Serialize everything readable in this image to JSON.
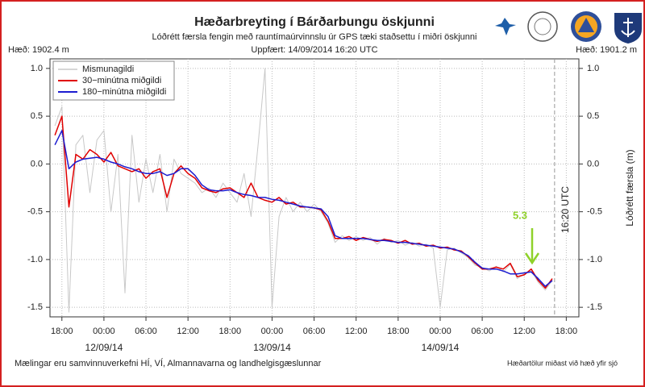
{
  "chart_data": {
    "type": "line",
    "title": "Hæðarbreyting í Bárðarbungu öskjunni",
    "subtitle": "Lóðrétt færsla fengin með rauntímaúrvinnslu úr GPS tæki staðsettu í miðri öskjunni",
    "updated": "Uppfært: 14/09/2014 16:20 UTC",
    "left_height": "Hæð: 1902.4 m",
    "right_height": "Hæð: 1901.2 m",
    "y2label": "Lóðrétt færsla (m)",
    "footer_left": "Mælingar eru samvinnuverkefni HÍ, VÍ, Almannavarna og landhelgisgæslunnar",
    "footer_right": "Hæðartölur miðast við hæð yfir sjó",
    "annotation": {
      "text": "5.3",
      "color": "#8fd12a"
    },
    "vline": {
      "x": 64.33,
      "label": "16:20 UTC"
    },
    "grid": true,
    "legend": "upper left",
    "xlim": [
      -7.7,
      67.8
    ],
    "ylim": [
      -1.6,
      1.1
    ],
    "xticks": [
      {
        "value": -6,
        "label": "18:00"
      },
      {
        "value": 0,
        "label": "00:00"
      },
      {
        "value": 6,
        "label": "06:00"
      },
      {
        "value": 12,
        "label": "12:00"
      },
      {
        "value": 18,
        "label": "18:00"
      },
      {
        "value": 24,
        "label": "00:00"
      },
      {
        "value": 30,
        "label": "06:00"
      },
      {
        "value": 36,
        "label": "12:00"
      },
      {
        "value": 42,
        "label": "18:00"
      },
      {
        "value": 48,
        "label": "00:00"
      },
      {
        "value": 54,
        "label": "06:00"
      },
      {
        "value": 60,
        "label": "12:00"
      },
      {
        "value": 66,
        "label": "18:00"
      }
    ],
    "date_ticks": [
      {
        "value": 0,
        "label": "12/09/14"
      },
      {
        "value": 24,
        "label": "13/09/14"
      },
      {
        "value": 48,
        "label": "14/09/14"
      }
    ],
    "yticks": [
      {
        "value": 1,
        "label": "1.0"
      },
      0.5,
      {
        "value": 0,
        "label": "0.0"
      },
      -0.5,
      {
        "value": -1,
        "label": "-1.0"
      },
      -1.5
    ],
    "x": [
      -7,
      -6,
      -5,
      -4,
      -3,
      -2,
      -1,
      0,
      1,
      2,
      3,
      4,
      5,
      6,
      7,
      8,
      9,
      10,
      11,
      12,
      13,
      14,
      15,
      16,
      17,
      18,
      19,
      20,
      21,
      22,
      23,
      24,
      25,
      26,
      27,
      28,
      29,
      30,
      31,
      32,
      33,
      34,
      35,
      36,
      37,
      38,
      39,
      40,
      41,
      42,
      43,
      44,
      45,
      46,
      47,
      48,
      49,
      50,
      51,
      52,
      53,
      54,
      55,
      56,
      57,
      58,
      59,
      60,
      61,
      62,
      63,
      64
    ],
    "series": [
      {
        "name": "Mismunagildi",
        "color": "#c8c8c8",
        "width": 1,
        "values": [
          0.4,
          0.6,
          -1.55,
          0.2,
          0.3,
          -0.3,
          0.25,
          0.35,
          -0.5,
          0.1,
          -1.35,
          0.3,
          -0.4,
          0.05,
          -0.3,
          0.1,
          -0.5,
          0.05,
          -0.1,
          -0.15,
          -0.2,
          -0.3,
          -0.25,
          -0.35,
          -0.2,
          -0.3,
          -0.4,
          -0.1,
          -0.55,
          0.2,
          1.0,
          -1.5,
          -0.55,
          -0.35,
          -0.5,
          -0.4,
          -0.5,
          -0.42,
          -0.5,
          -0.62,
          -0.82,
          -0.75,
          -0.8,
          -0.76,
          -0.8,
          -0.77,
          -0.84,
          -0.78,
          -0.82,
          -0.8,
          -0.85,
          -0.82,
          -0.86,
          -0.84,
          -0.88,
          -1.5,
          -0.9,
          -0.88,
          -0.93,
          -0.98,
          -1.06,
          -1.08,
          -1.12,
          -1.07,
          -1.13,
          -1.05,
          -1.2,
          -1.15,
          -1.12,
          -1.24,
          -1.32,
          -1.22
        ]
      },
      {
        "name": "30−minútna miðgildi",
        "color": "#e00000",
        "width": 1.5,
        "values": [
          0.3,
          0.5,
          -0.45,
          0.1,
          0.05,
          0.15,
          0.1,
          0.02,
          0.12,
          -0.02,
          -0.05,
          -0.08,
          -0.05,
          -0.15,
          -0.08,
          -0.05,
          -0.35,
          -0.1,
          -0.02,
          -0.1,
          -0.15,
          -0.25,
          -0.28,
          -0.3,
          -0.26,
          -0.25,
          -0.3,
          -0.35,
          -0.2,
          -0.35,
          -0.38,
          -0.4,
          -0.35,
          -0.42,
          -0.4,
          -0.45,
          -0.45,
          -0.46,
          -0.48,
          -0.6,
          -0.78,
          -0.78,
          -0.76,
          -0.8,
          -0.77,
          -0.79,
          -0.81,
          -0.79,
          -0.8,
          -0.83,
          -0.8,
          -0.84,
          -0.83,
          -0.86,
          -0.85,
          -0.88,
          -0.87,
          -0.9,
          -0.91,
          -0.97,
          -1.04,
          -1.1,
          -1.1,
          -1.08,
          -1.1,
          -1.04,
          -1.18,
          -1.16,
          -1.1,
          -1.22,
          -1.3,
          -1.2
        ]
      },
      {
        "name": "180−minútna miðgildi",
        "color": "#1c1cd0",
        "width": 1.5,
        "values": [
          0.2,
          0.35,
          -0.05,
          0.02,
          0.05,
          0.06,
          0.07,
          0.05,
          0.02,
          0.0,
          -0.03,
          -0.05,
          -0.08,
          -0.1,
          -0.1,
          -0.08,
          -0.12,
          -0.1,
          -0.05,
          -0.05,
          -0.12,
          -0.22,
          -0.27,
          -0.28,
          -0.28,
          -0.27,
          -0.3,
          -0.32,
          -0.33,
          -0.35,
          -0.35,
          -0.37,
          -0.38,
          -0.4,
          -0.42,
          -0.44,
          -0.45,
          -0.46,
          -0.47,
          -0.55,
          -0.75,
          -0.78,
          -0.78,
          -0.78,
          -0.78,
          -0.79,
          -0.8,
          -0.8,
          -0.81,
          -0.82,
          -0.82,
          -0.83,
          -0.84,
          -0.85,
          -0.86,
          -0.87,
          -0.88,
          -0.89,
          -0.92,
          -0.96,
          -1.03,
          -1.09,
          -1.1,
          -1.1,
          -1.12,
          -1.15,
          -1.15,
          -1.14,
          -1.13,
          -1.2,
          -1.28,
          -1.22
        ]
      }
    ]
  }
}
